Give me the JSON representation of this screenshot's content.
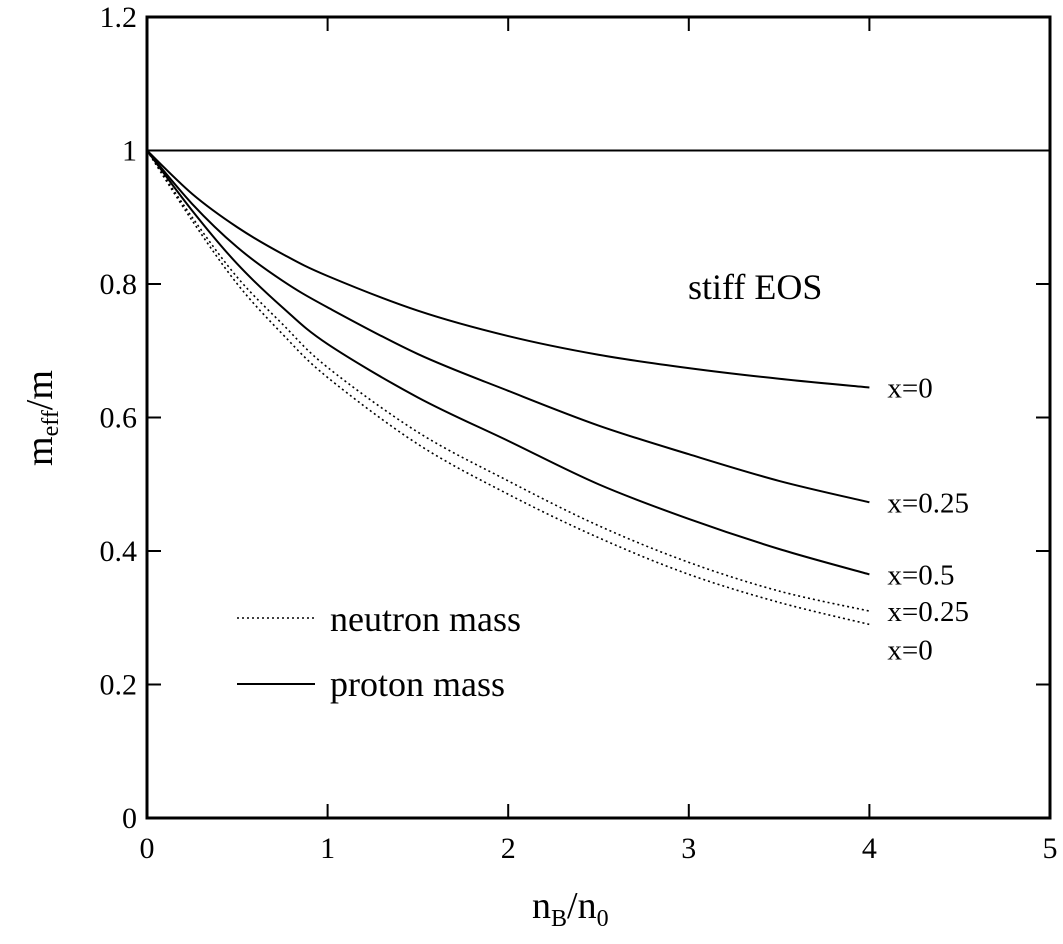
{
  "chart_data": {
    "type": "line",
    "title": "",
    "xlabel": {
      "base": "n",
      "sub": "B",
      "sep": "/",
      "base2": "n",
      "sub2": "0"
    },
    "ylabel": {
      "base": "m",
      "sub": "eff",
      "sep": "/m"
    },
    "xlim": [
      0,
      5
    ],
    "ylim": [
      0,
      1.2
    ],
    "xticks": [
      "0",
      "1",
      "2",
      "3",
      "4",
      "5"
    ],
    "xtick_values": [
      0,
      1,
      2,
      3,
      4,
      5
    ],
    "yticks": [
      "0",
      "0.2",
      "0.4",
      "0.6",
      "0.8",
      "1",
      "1.2"
    ],
    "ytick_values": [
      0,
      0.2,
      0.4,
      0.6,
      0.8,
      1.0,
      1.2
    ],
    "grid": false,
    "legend_position": "bottom-left",
    "legend": [
      {
        "label": "neutron mass",
        "style": "dotted"
      },
      {
        "label": "proton mass",
        "style": "solid"
      }
    ],
    "annotation": "stiff EOS",
    "reference_line": {
      "y": 1.0,
      "style": "solid"
    },
    "series": [
      {
        "label": "x=0",
        "kind": "proton",
        "style": "solid",
        "x": [
          0,
          0.25,
          0.5,
          0.75,
          1.0,
          1.5,
          2.0,
          2.5,
          3.0,
          3.5,
          4.0
        ],
        "y": [
          1.0,
          0.935,
          0.885,
          0.845,
          0.812,
          0.76,
          0.722,
          0.694,
          0.674,
          0.658,
          0.645
        ]
      },
      {
        "label": "x=0.25",
        "kind": "proton",
        "style": "solid",
        "x": [
          0,
          0.25,
          0.5,
          0.75,
          1.0,
          1.5,
          2.0,
          2.5,
          3.0,
          3.5,
          4.0
        ],
        "y": [
          1.0,
          0.92,
          0.855,
          0.805,
          0.765,
          0.695,
          0.64,
          0.588,
          0.545,
          0.505,
          0.473
        ]
      },
      {
        "label": "x=0.5",
        "kind": "proton",
        "style": "solid",
        "x": [
          0,
          0.25,
          0.5,
          0.75,
          1.0,
          1.5,
          2.0,
          2.5,
          3.0,
          3.5,
          4.0
        ],
        "y": [
          1.0,
          0.91,
          0.83,
          0.765,
          0.71,
          0.63,
          0.565,
          0.5,
          0.448,
          0.403,
          0.365
        ]
      },
      {
        "label": "x=0.25",
        "kind": "neutron",
        "style": "dotted",
        "x": [
          0,
          0.25,
          0.5,
          0.75,
          1.0,
          1.5,
          2.0,
          2.5,
          3.0,
          3.5,
          4.0
        ],
        "y": [
          1.0,
          0.9,
          0.81,
          0.74,
          0.675,
          0.578,
          0.505,
          0.438,
          0.383,
          0.34,
          0.31
        ]
      },
      {
        "label": "x=0",
        "kind": "neutron",
        "style": "dotted",
        "x": [
          0,
          0.25,
          0.5,
          0.75,
          1.0,
          1.5,
          2.0,
          2.5,
          3.0,
          3.5,
          4.0
        ],
        "y": [
          1.0,
          0.895,
          0.8,
          0.725,
          0.66,
          0.56,
          0.485,
          0.42,
          0.365,
          0.323,
          0.29
        ]
      }
    ]
  }
}
